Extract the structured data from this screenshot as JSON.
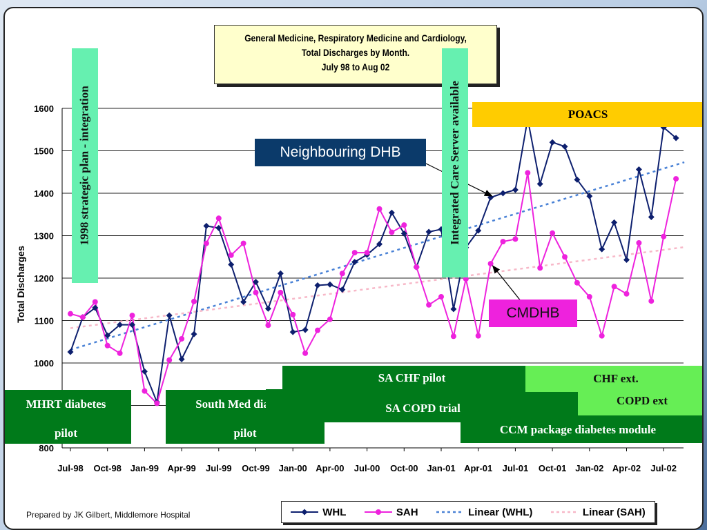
{
  "chart_data": {
    "type": "line",
    "title": "General Medicine, Respiratory Medicine and Cardiology,",
    "title_line2": "Total Discharges by Month.",
    "subtitle": "July 98 to Aug 02",
    "ylabel": "Total Discharges",
    "ylim": [
      800,
      1600
    ],
    "yticks": [
      "800",
      "900",
      "1000",
      "1100",
      "1200",
      "1300",
      "1400",
      "1500",
      "1600"
    ],
    "xtick_labels": [
      "Jul-98",
      "Oct-98",
      "Jan-99",
      "Apr-99",
      "Jul-99",
      "Oct-99",
      "Jan-00",
      "Apr-00",
      "Jul-00",
      "Oct-00",
      "Jan-01",
      "Apr-01",
      "Jul-01",
      "Oct-01",
      "Jan-02",
      "Apr-02",
      "Jul-02"
    ],
    "grid": true,
    "legend_position": "bottom",
    "series": [
      {
        "name": "WHL",
        "color": "#0d1f6e",
        "marker": "diamond",
        "values": [
          1026,
          1108,
          1130,
          1065,
          1090,
          1090,
          980,
          908,
          1112,
          1009,
          1068,
          1323,
          1318,
          1232,
          1144,
          1191,
          1128,
          1211,
          1073,
          1078,
          1183,
          1185,
          1173,
          1238,
          1255,
          1280,
          1354,
          1305,
          1226,
          1309,
          1315,
          1127,
          1272,
          1312,
          1390,
          1400,
          1408,
          1575,
          1422,
          1520,
          1510,
          1432,
          1393,
          1268,
          1331,
          1243,
          1456,
          1344,
          1555,
          1530
        ]
      },
      {
        "name": "SAH",
        "color": "#ee22dd",
        "marker": "circle",
        "values": [
          1116,
          1108,
          1144,
          1041,
          1023,
          1112,
          934,
          905,
          1007,
          1057,
          1145,
          1282,
          1341,
          1254,
          1282,
          1166,
          1089,
          1166,
          1114,
          1023,
          1077,
          1103,
          1211,
          1260,
          1260,
          1363,
          1308,
          1325,
          1226,
          1137,
          1156,
          1063,
          1198,
          1064,
          1234,
          1286,
          1292,
          1448,
          1224,
          1306,
          1250,
          1189,
          1156,
          1064,
          1180,
          1163,
          1283,
          1146,
          1298,
          1434
        ]
      },
      {
        "name": "Linear (WHL)",
        "color": "#4a82d6",
        "dash": "dotted",
        "start": 1031,
        "end": 1473
      },
      {
        "name": "Linear (SAH)",
        "color": "#f7b8c8",
        "dash": "dotted",
        "start": 1082,
        "end": 1273
      }
    ]
  },
  "annotations": {
    "strategic_plan": "1998 strategic plan - integration",
    "care_server": "Integrated Care Server available",
    "poacs": "POACS",
    "neighbouring": "Neighbouring DHB",
    "cmdhb": "CMDHB",
    "mhrt_line1": "MHRT diabetes",
    "mhrt_line2": "pilot",
    "south_med_line1": "South Med diabetes",
    "south_med_line2": "pilot",
    "sa_chf": "SA CHF pilot",
    "sa_copd": "SA COPD trial",
    "chf_ext": "CHF ext.",
    "copd_ext": "COPD ext",
    "ccm": "CCM package diabetes module"
  },
  "colors": {
    "dark_green": "#007a1a",
    "light_green": "#66ee55",
    "mint": "#66f0b0",
    "poacs_yellow": "#ffcc00",
    "navy": "#0b3a6a",
    "magenta": "#ee22dd"
  },
  "footer": "Prepared by JK Gilbert, Middlemore Hospital"
}
